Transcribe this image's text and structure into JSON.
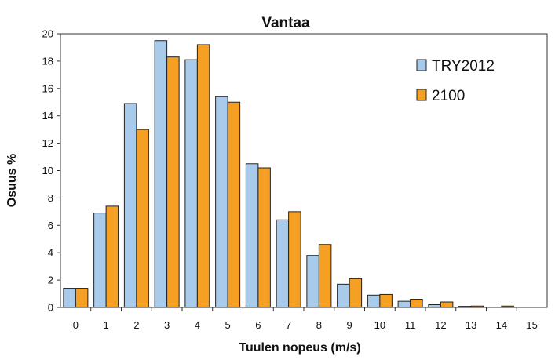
{
  "chart_data": {
    "type": "bar",
    "title": "Vantaa",
    "xlabel": "Tuulen nopeus (m/s)",
    "ylabel": "Osuus %",
    "categories": [
      "0",
      "1",
      "2",
      "3",
      "4",
      "5",
      "6",
      "7",
      "8",
      "9",
      "10",
      "11",
      "12",
      "13",
      "14",
      "15"
    ],
    "ylim": [
      0,
      20
    ],
    "yticks": [
      0,
      2,
      4,
      6,
      8,
      10,
      12,
      14,
      16,
      18,
      20
    ],
    "grid": false,
    "legend_position": "top-right",
    "series": [
      {
        "name": "TRY2012",
        "color": "#a9cbeb",
        "values": [
          1.4,
          6.9,
          14.9,
          19.5,
          18.1,
          15.4,
          10.5,
          6.4,
          3.8,
          1.7,
          0.9,
          0.45,
          0.2,
          0.08,
          0.0,
          0.0
        ]
      },
      {
        "name": "2100",
        "color": "#f5a023",
        "values": [
          1.4,
          7.4,
          13.0,
          18.3,
          19.2,
          15.0,
          10.2,
          7.0,
          4.6,
          2.1,
          0.95,
          0.6,
          0.4,
          0.1,
          0.1,
          0.0
        ]
      }
    ]
  }
}
